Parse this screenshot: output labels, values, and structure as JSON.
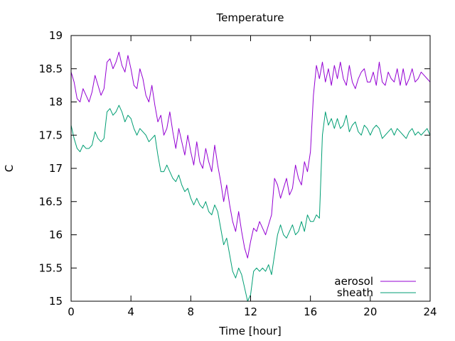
{
  "chart_data": {
    "type": "line",
    "title": "Temperature",
    "xlabel": "Time [hour]",
    "ylabel": "C",
    "xlim": [
      0,
      24
    ],
    "ylim": [
      15,
      19
    ],
    "xticks": [
      0,
      4,
      8,
      12,
      16,
      20,
      24
    ],
    "yticks": [
      15,
      15.5,
      16,
      16.5,
      17,
      17.5,
      18,
      18.5,
      19
    ],
    "grid": false,
    "legend_position": "bottom-right",
    "series": [
      {
        "name": "aerosol",
        "color": "#9400d3",
        "x": [
          0,
          0.2,
          0.4,
          0.6,
          0.8,
          1.0,
          1.2,
          1.4,
          1.6,
          1.8,
          2.0,
          2.2,
          2.4,
          2.6,
          2.8,
          3.0,
          3.2,
          3.4,
          3.6,
          3.8,
          4.0,
          4.2,
          4.4,
          4.6,
          4.8,
          5.0,
          5.2,
          5.4,
          5.6,
          5.8,
          6.0,
          6.2,
          6.4,
          6.6,
          6.8,
          7.0,
          7.2,
          7.4,
          7.6,
          7.8,
          8.0,
          8.2,
          8.4,
          8.6,
          8.8,
          9.0,
          9.2,
          9.4,
          9.6,
          9.8,
          10.0,
          10.2,
          10.4,
          10.6,
          10.8,
          11.0,
          11.2,
          11.4,
          11.6,
          11.8,
          12.0,
          12.2,
          12.4,
          12.6,
          12.8,
          13.0,
          13.2,
          13.4,
          13.6,
          13.8,
          14.0,
          14.2,
          14.4,
          14.6,
          14.8,
          15.0,
          15.2,
          15.4,
          15.6,
          15.8,
          16.0,
          16.2,
          16.4,
          16.6,
          16.8,
          17.0,
          17.2,
          17.4,
          17.6,
          17.8,
          18.0,
          18.2,
          18.4,
          18.6,
          18.8,
          19.0,
          19.2,
          19.4,
          19.6,
          19.8,
          20.0,
          20.2,
          20.4,
          20.6,
          20.8,
          21.0,
          21.2,
          21.4,
          21.6,
          21.8,
          22.0,
          22.2,
          22.4,
          22.6,
          22.8,
          23.0,
          23.2,
          23.4,
          23.6,
          23.8,
          24.0
        ],
        "y": [
          18.45,
          18.3,
          18.05,
          18.0,
          18.2,
          18.1,
          18.0,
          18.15,
          18.4,
          18.25,
          18.1,
          18.2,
          18.6,
          18.65,
          18.5,
          18.6,
          18.75,
          18.55,
          18.45,
          18.7,
          18.5,
          18.25,
          18.2,
          18.5,
          18.35,
          18.1,
          18.0,
          18.25,
          17.95,
          17.7,
          17.8,
          17.5,
          17.6,
          17.85,
          17.55,
          17.3,
          17.6,
          17.4,
          17.2,
          17.5,
          17.25,
          17.05,
          17.4,
          17.1,
          17.0,
          17.3,
          17.1,
          16.95,
          17.35,
          17.05,
          16.8,
          16.5,
          16.75,
          16.45,
          16.2,
          16.05,
          16.35,
          16.05,
          15.8,
          15.65,
          15.9,
          16.1,
          16.05,
          16.2,
          16.1,
          16.0,
          16.15,
          16.3,
          16.85,
          16.75,
          16.55,
          16.7,
          16.85,
          16.6,
          16.7,
          17.05,
          16.85,
          16.75,
          17.1,
          16.95,
          17.25,
          18.1,
          18.55,
          18.35,
          18.6,
          18.3,
          18.5,
          18.25,
          18.55,
          18.35,
          18.6,
          18.35,
          18.25,
          18.55,
          18.3,
          18.2,
          18.35,
          18.45,
          18.5,
          18.3,
          18.3,
          18.45,
          18.25,
          18.6,
          18.3,
          18.25,
          18.45,
          18.35,
          18.3,
          18.5,
          18.25,
          18.5,
          18.25,
          18.35,
          18.5,
          18.3,
          18.35,
          18.45,
          18.4,
          18.35,
          18.3
        ]
      },
      {
        "name": "sheath",
        "color": "#009e73",
        "x": [
          0,
          0.2,
          0.4,
          0.6,
          0.8,
          1.0,
          1.2,
          1.4,
          1.6,
          1.8,
          2.0,
          2.2,
          2.4,
          2.6,
          2.8,
          3.0,
          3.2,
          3.4,
          3.6,
          3.8,
          4.0,
          4.2,
          4.4,
          4.6,
          4.8,
          5.0,
          5.2,
          5.4,
          5.6,
          5.8,
          6.0,
          6.2,
          6.4,
          6.6,
          6.8,
          7.0,
          7.2,
          7.4,
          7.6,
          7.8,
          8.0,
          8.2,
          8.4,
          8.6,
          8.8,
          9.0,
          9.2,
          9.4,
          9.6,
          9.8,
          10.0,
          10.2,
          10.4,
          10.6,
          10.8,
          11.0,
          11.2,
          11.4,
          11.6,
          11.8,
          12.0,
          12.2,
          12.4,
          12.6,
          12.8,
          13.0,
          13.2,
          13.4,
          13.6,
          13.8,
          14.0,
          14.2,
          14.4,
          14.6,
          14.8,
          15.0,
          15.2,
          15.4,
          15.6,
          15.8,
          16.0,
          16.2,
          16.4,
          16.6,
          16.8,
          17.0,
          17.2,
          17.4,
          17.6,
          17.8,
          18.0,
          18.2,
          18.4,
          18.6,
          18.8,
          19.0,
          19.2,
          19.4,
          19.6,
          19.8,
          20.0,
          20.2,
          20.4,
          20.6,
          20.8,
          21.0,
          21.2,
          21.4,
          21.6,
          21.8,
          22.0,
          22.2,
          22.4,
          22.6,
          22.8,
          23.0,
          23.2,
          23.4,
          23.6,
          23.8,
          24.0
        ],
        "y": [
          17.65,
          17.45,
          17.3,
          17.25,
          17.35,
          17.3,
          17.3,
          17.35,
          17.55,
          17.45,
          17.4,
          17.45,
          17.85,
          17.9,
          17.8,
          17.85,
          17.95,
          17.85,
          17.7,
          17.8,
          17.75,
          17.6,
          17.5,
          17.6,
          17.55,
          17.5,
          17.4,
          17.45,
          17.5,
          17.2,
          16.95,
          16.95,
          17.05,
          16.95,
          16.85,
          16.8,
          16.9,
          16.75,
          16.65,
          16.7,
          16.55,
          16.45,
          16.55,
          16.45,
          16.4,
          16.5,
          16.35,
          16.3,
          16.45,
          16.35,
          16.1,
          15.85,
          15.95,
          15.7,
          15.45,
          15.35,
          15.5,
          15.4,
          15.2,
          15.0,
          15.1,
          15.45,
          15.5,
          15.45,
          15.5,
          15.45,
          15.55,
          15.4,
          15.7,
          16.0,
          16.15,
          16.0,
          15.95,
          16.05,
          16.15,
          16.0,
          16.05,
          16.2,
          16.05,
          16.3,
          16.2,
          16.2,
          16.3,
          16.25,
          17.5,
          17.85,
          17.65,
          17.75,
          17.6,
          17.75,
          17.6,
          17.65,
          17.8,
          17.55,
          17.65,
          17.7,
          17.55,
          17.5,
          17.65,
          17.6,
          17.5,
          17.6,
          17.65,
          17.6,
          17.45,
          17.5,
          17.55,
          17.6,
          17.5,
          17.6,
          17.55,
          17.5,
          17.45,
          17.55,
          17.6,
          17.5,
          17.55,
          17.5,
          17.55,
          17.6,
          17.5
        ]
      }
    ]
  }
}
